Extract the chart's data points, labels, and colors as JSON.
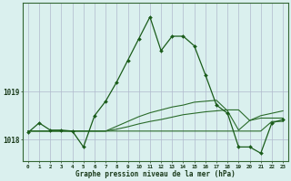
{
  "title": "Graphe pression niveau de la mer (hPa)",
  "bg_color": "#daf0ee",
  "grid_color": "#b0b8cc",
  "line_color_main": "#1a5c1a",
  "line_color_flat": "#2a6b2a",
  "label_color": "#1a3a1a",
  "hours": [
    0,
    1,
    2,
    3,
    4,
    5,
    6,
    7,
    8,
    9,
    10,
    11,
    12,
    13,
    14,
    15,
    16,
    17,
    18,
    19,
    20,
    21,
    22,
    23
  ],
  "main_series": [
    1018.15,
    1018.35,
    1018.2,
    1018.2,
    1018.18,
    1017.85,
    1018.5,
    1018.8,
    1019.2,
    1019.65,
    1020.1,
    1020.55,
    1019.85,
    1020.15,
    1020.15,
    1019.95,
    1019.35,
    1018.72,
    1018.55,
    1017.85,
    1017.85,
    1017.72,
    1018.35,
    1018.42
  ],
  "flat1": [
    1018.18,
    1018.18,
    1018.18,
    1018.18,
    1018.18,
    1018.18,
    1018.18,
    1018.18,
    1018.18,
    1018.18,
    1018.18,
    1018.18,
    1018.18,
    1018.18,
    1018.18,
    1018.18,
    1018.18,
    1018.18,
    1018.18,
    1018.18,
    1018.18,
    1018.18,
    1018.38,
    1018.38
  ],
  "flat2": [
    1018.18,
    1018.18,
    1018.18,
    1018.18,
    1018.18,
    1018.18,
    1018.18,
    1018.18,
    1018.22,
    1018.27,
    1018.33,
    1018.38,
    1018.42,
    1018.47,
    1018.52,
    1018.55,
    1018.58,
    1018.6,
    1018.62,
    1018.62,
    1018.4,
    1018.45,
    1018.45,
    1018.45
  ],
  "flat3": [
    1018.18,
    1018.18,
    1018.18,
    1018.18,
    1018.18,
    1018.18,
    1018.18,
    1018.18,
    1018.28,
    1018.38,
    1018.48,
    1018.56,
    1018.62,
    1018.68,
    1018.72,
    1018.78,
    1018.8,
    1018.82,
    1018.6,
    1018.2,
    1018.4,
    1018.5,
    1018.55,
    1018.6
  ],
  "ylim": [
    1017.55,
    1020.85
  ],
  "ytick_vals": [
    1018,
    1019
  ],
  "xlim": [
    -0.5,
    23.5
  ],
  "xtick_labels": [
    "0",
    "1",
    "2",
    "3",
    "4",
    "5",
    "6",
    "7",
    "8",
    "9",
    "10",
    "11",
    "12",
    "13",
    "14",
    "15",
    "16",
    "17",
    "18",
    "19",
    "20",
    "21",
    "22",
    "23"
  ]
}
